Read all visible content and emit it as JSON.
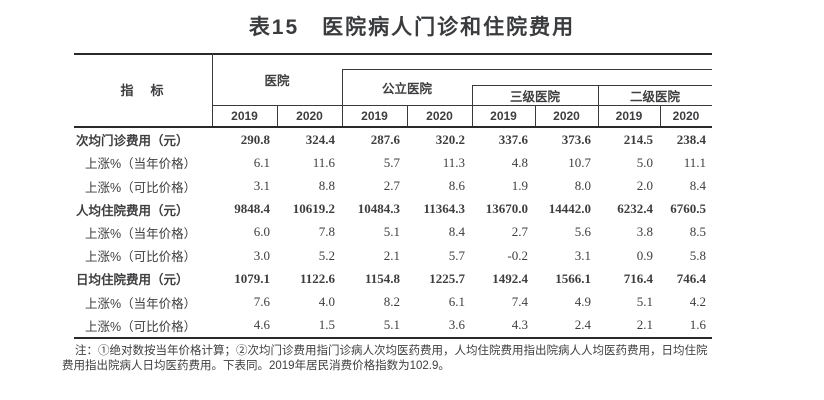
{
  "title": "表15　医院病人门诊和住院费用",
  "table": {
    "indicator_header": "指　标",
    "groups": [
      {
        "label": "医院",
        "years": [
          "2019",
          "2020"
        ]
      },
      {
        "label": "公立医院",
        "years": [
          "2019",
          "2020"
        ]
      },
      {
        "label": "三级医院",
        "years": [
          "2019",
          "2020"
        ]
      },
      {
        "label": "二级医院",
        "years": [
          "2019",
          "2020"
        ]
      }
    ],
    "rows": [
      {
        "label": "次均门诊费用（元）",
        "bold": true,
        "values": [
          "290.8",
          "324.4",
          "287.6",
          "320.2",
          "337.6",
          "373.6",
          "214.5",
          "238.4"
        ]
      },
      {
        "label": "上涨%（当年价格）",
        "bold": false,
        "values": [
          "6.1",
          "11.6",
          "5.7",
          "11.3",
          "4.8",
          "10.7",
          "5.0",
          "11.1"
        ]
      },
      {
        "label": "上涨%（可比价格）",
        "bold": false,
        "values": [
          "3.1",
          "8.8",
          "2.7",
          "8.6",
          "1.9",
          "8.0",
          "2.0",
          "8.4"
        ]
      },
      {
        "label": "人均住院费用（元）",
        "bold": true,
        "values": [
          "9848.4",
          "10619.2",
          "10484.3",
          "11364.3",
          "13670.0",
          "14442.0",
          "6232.4",
          "6760.5"
        ]
      },
      {
        "label": "上涨%（当年价格）",
        "bold": false,
        "values": [
          "6.0",
          "7.8",
          "5.1",
          "8.4",
          "2.7",
          "5.6",
          "3.8",
          "8.5"
        ]
      },
      {
        "label": "上涨%（可比价格）",
        "bold": false,
        "values": [
          "3.0",
          "5.2",
          "2.1",
          "5.7",
          "-0.2",
          "3.1",
          "0.9",
          "5.8"
        ]
      },
      {
        "label": "日均住院费用（元）",
        "bold": true,
        "values": [
          "1079.1",
          "1122.6",
          "1154.8",
          "1225.7",
          "1492.4",
          "1566.1",
          "716.4",
          "746.4"
        ]
      },
      {
        "label": "上涨%（当年价格）",
        "bold": false,
        "values": [
          "7.6",
          "4.0",
          "8.2",
          "6.1",
          "7.4",
          "4.9",
          "5.1",
          "4.2"
        ]
      },
      {
        "label": "上涨%（可比价格）",
        "bold": false,
        "values": [
          "4.6",
          "1.5",
          "5.1",
          "3.6",
          "4.3",
          "2.4",
          "2.1",
          "1.6"
        ]
      }
    ]
  },
  "footnote": "注：①绝对数按当年价格计算；②次均门诊费用指门诊病人次均医药费用，人均住院费用指出院病人人均医药费用，日均住院费用指出院病人日均医药费用。下表同。2019年居民消费价格指数为102.9。",
  "colors": {
    "text": "#3e3e40",
    "border": "#3a3a3a",
    "thick_border": "#2a2a2a"
  }
}
